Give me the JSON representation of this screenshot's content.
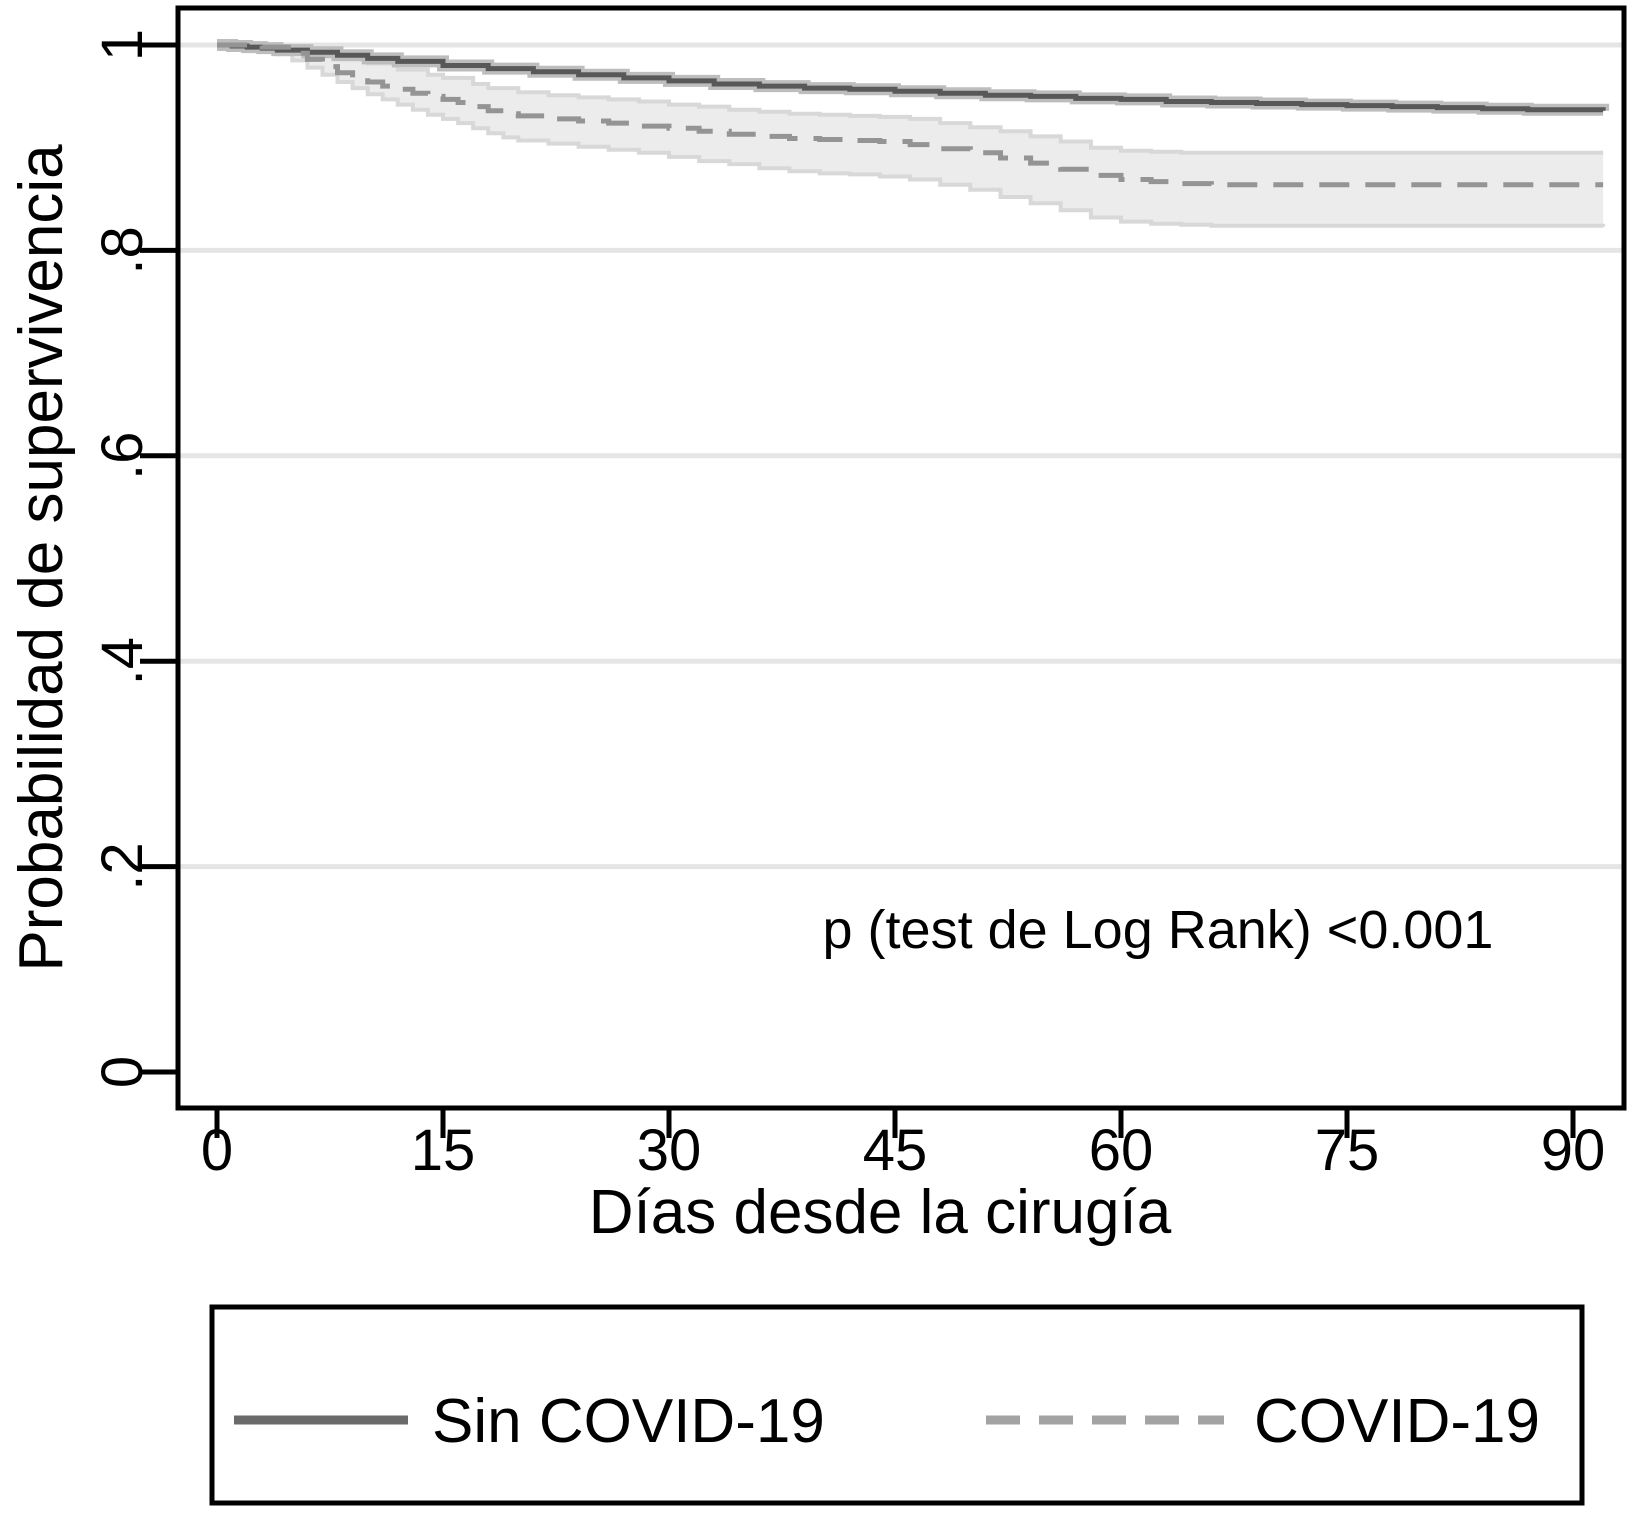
{
  "chart_data": {
    "type": "line",
    "subtype": "kaplan-meier-survival",
    "title": "",
    "xlabel": "Días desde la cirugía",
    "ylabel": "Probabilidad de supervivencia",
    "xlim": [
      -2.7,
      93.5
    ],
    "ylim": [
      -0.05,
      1.036
    ],
    "grid": "horizontal",
    "x_ticks": [
      {
        "value": 0,
        "label": "0"
      },
      {
        "value": 15,
        "label": "15"
      },
      {
        "value": 30,
        "label": "30"
      },
      {
        "value": 45,
        "label": "45"
      },
      {
        "value": 60,
        "label": "60"
      },
      {
        "value": 75,
        "label": "75"
      },
      {
        "value": 90,
        "label": "90"
      }
    ],
    "y_ticks": [
      {
        "value": 0,
        "label": "0"
      },
      {
        "value": 0.2,
        "label": ".2"
      },
      {
        "value": 0.4,
        "label": ".4"
      },
      {
        "value": 0.6,
        "label": ".6"
      },
      {
        "value": 0.8,
        "label": ".8"
      },
      {
        "value": 1,
        "label": "1"
      }
    ],
    "annotation": {
      "text": "p (test de Log Rank) <0.001",
      "x": 62,
      "y": 0.125
    },
    "series": [
      {
        "name": "Sin COVID-19",
        "style": "solid",
        "color": "#585858",
        "halo_color": "#bdbdbd",
        "points": [
          [
            0,
            1.0
          ],
          [
            1,
            0.999
          ],
          [
            2,
            0.998
          ],
          [
            3,
            0.997
          ],
          [
            4,
            0.995
          ],
          [
            6,
            0.993
          ],
          [
            8,
            0.99
          ],
          [
            10,
            0.987
          ],
          [
            12,
            0.984
          ],
          [
            15,
            0.98
          ],
          [
            18,
            0.977
          ],
          [
            21,
            0.974
          ],
          [
            24,
            0.971
          ],
          [
            27,
            0.968
          ],
          [
            30,
            0.965
          ],
          [
            33,
            0.962
          ],
          [
            36,
            0.96
          ],
          [
            39,
            0.958
          ],
          [
            42,
            0.957
          ],
          [
            45,
            0.955
          ],
          [
            48,
            0.953
          ],
          [
            51,
            0.951
          ],
          [
            54,
            0.95
          ],
          [
            57,
            0.948
          ],
          [
            60,
            0.947
          ],
          [
            63,
            0.945
          ],
          [
            66,
            0.944
          ],
          [
            69,
            0.943
          ],
          [
            72,
            0.942
          ],
          [
            75,
            0.941
          ],
          [
            78,
            0.94
          ],
          [
            81,
            0.939
          ],
          [
            84,
            0.938
          ],
          [
            87,
            0.937
          ],
          [
            90,
            0.937
          ],
          [
            92,
            0.936
          ]
        ]
      },
      {
        "name": "COVID-19",
        "style": "dashed",
        "color": "#949494",
        "band_fill": "#ececec",
        "band_edge": "#d8d8d8",
        "points": [
          [
            0,
            1.0
          ],
          [
            3,
            0.998
          ],
          [
            5,
            0.992
          ],
          [
            6,
            0.986
          ],
          [
            7,
            0.979
          ],
          [
            8,
            0.973
          ],
          [
            9,
            0.968
          ],
          [
            10,
            0.964
          ],
          [
            11,
            0.96
          ],
          [
            12,
            0.957
          ],
          [
            13,
            0.953
          ],
          [
            14,
            0.95
          ],
          [
            15,
            0.947
          ],
          [
            16,
            0.944
          ],
          [
            17,
            0.94
          ],
          [
            18,
            0.936
          ],
          [
            19,
            0.933
          ],
          [
            20,
            0.931
          ],
          [
            22,
            0.928
          ],
          [
            24,
            0.926
          ],
          [
            26,
            0.924
          ],
          [
            28,
            0.921
          ],
          [
            30,
            0.919
          ],
          [
            32,
            0.916
          ],
          [
            34,
            0.913
          ],
          [
            36,
            0.911
          ],
          [
            38,
            0.909
          ],
          [
            40,
            0.908
          ],
          [
            42,
            0.907
          ],
          [
            44,
            0.906
          ],
          [
            46,
            0.903
          ],
          [
            48,
            0.899
          ],
          [
            50,
            0.895
          ],
          [
            52,
            0.89
          ],
          [
            54,
            0.885
          ],
          [
            56,
            0.879
          ],
          [
            58,
            0.873
          ],
          [
            60,
            0.869
          ],
          [
            62,
            0.867
          ],
          [
            64,
            0.865
          ],
          [
            66,
            0.864
          ],
          [
            92,
            0.864
          ]
        ],
        "ci_upper": [
          [
            0,
            1.0
          ],
          [
            4,
            0.999
          ],
          [
            6,
            0.996
          ],
          [
            8,
            0.991
          ],
          [
            10,
            0.982
          ],
          [
            12,
            0.976
          ],
          [
            14,
            0.971
          ],
          [
            15,
            0.968
          ],
          [
            17,
            0.962
          ],
          [
            18,
            0.958
          ],
          [
            20,
            0.954
          ],
          [
            22,
            0.951
          ],
          [
            24,
            0.949
          ],
          [
            26,
            0.947
          ],
          [
            28,
            0.945
          ],
          [
            30,
            0.942
          ],
          [
            32,
            0.94
          ],
          [
            34,
            0.937
          ],
          [
            36,
            0.935
          ],
          [
            38,
            0.933
          ],
          [
            40,
            0.932
          ],
          [
            42,
            0.931
          ],
          [
            44,
            0.93
          ],
          [
            46,
            0.928
          ],
          [
            48,
            0.924
          ],
          [
            50,
            0.92
          ],
          [
            52,
            0.916
          ],
          [
            54,
            0.911
          ],
          [
            56,
            0.906
          ],
          [
            58,
            0.9
          ],
          [
            60,
            0.897
          ],
          [
            62,
            0.896
          ],
          [
            64,
            0.895
          ],
          [
            66,
            0.895
          ],
          [
            92,
            0.895
          ]
        ],
        "ci_lower": [
          [
            0,
            1.0
          ],
          [
            2,
            0.997
          ],
          [
            4,
            0.991
          ],
          [
            5,
            0.985
          ],
          [
            6,
            0.978
          ],
          [
            7,
            0.971
          ],
          [
            8,
            0.964
          ],
          [
            9,
            0.958
          ],
          [
            10,
            0.952
          ],
          [
            11,
            0.947
          ],
          [
            12,
            0.942
          ],
          [
            13,
            0.937
          ],
          [
            14,
            0.932
          ],
          [
            15,
            0.928
          ],
          [
            16,
            0.924
          ],
          [
            17,
            0.919
          ],
          [
            18,
            0.914
          ],
          [
            19,
            0.91
          ],
          [
            20,
            0.907
          ],
          [
            22,
            0.904
          ],
          [
            24,
            0.901
          ],
          [
            26,
            0.898
          ],
          [
            28,
            0.895
          ],
          [
            30,
            0.891
          ],
          [
            32,
            0.887
          ],
          [
            34,
            0.884
          ],
          [
            36,
            0.88
          ],
          [
            38,
            0.877
          ],
          [
            40,
            0.875
          ],
          [
            42,
            0.874
          ],
          [
            44,
            0.872
          ],
          [
            46,
            0.869
          ],
          [
            48,
            0.864
          ],
          [
            50,
            0.859
          ],
          [
            52,
            0.852
          ],
          [
            54,
            0.846
          ],
          [
            56,
            0.839
          ],
          [
            58,
            0.832
          ],
          [
            60,
            0.828
          ],
          [
            62,
            0.826
          ],
          [
            64,
            0.825
          ],
          [
            66,
            0.824
          ],
          [
            92,
            0.823
          ]
        ]
      }
    ],
    "legend": {
      "position": "bottom",
      "entries": [
        {
          "label": "Sin COVID-19",
          "style": "solid",
          "color": "#6a6a6a"
        },
        {
          "label": "COVID-19",
          "style": "dashed",
          "color": "#a3a3a3"
        }
      ]
    },
    "colors": {
      "gridline": "#e5e5e5",
      "frame": "#000000",
      "text": "#000000",
      "background": "#ffffff"
    }
  }
}
